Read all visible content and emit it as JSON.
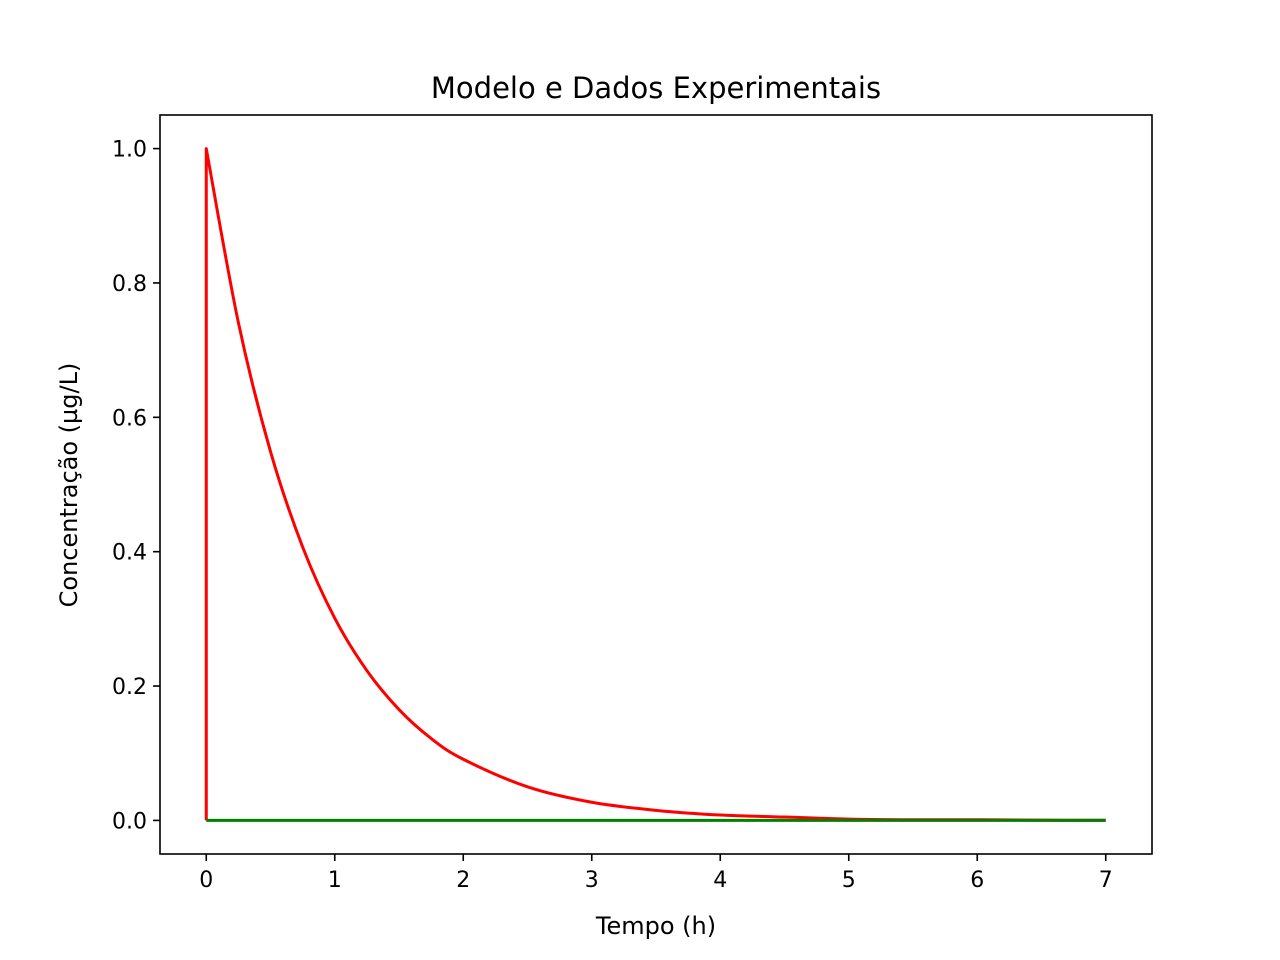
{
  "chart_data": {
    "type": "line",
    "title": "Modelo e Dados Experimentais",
    "xlabel": "Tempo (h)",
    "ylabel": "Concentração (µg/L)",
    "xlim": [
      -0.36,
      7.36
    ],
    "ylim": [
      -0.05,
      1.05
    ],
    "xticks": [
      0,
      1,
      2,
      3,
      4,
      5,
      6,
      7
    ],
    "xtick_labels": [
      "0",
      "1",
      "2",
      "3",
      "4",
      "5",
      "6",
      "7"
    ],
    "yticks": [
      0.0,
      0.2,
      0.4,
      0.6,
      0.8,
      1.0
    ],
    "ytick_labels": [
      "0.0",
      "0.2",
      "0.4",
      "0.6",
      "0.8",
      "1.0"
    ],
    "grid": false,
    "series": [
      {
        "color": "#ff0000",
        "x": [
          0,
          0,
          0.25,
          0.5,
          0.75,
          1.0,
          1.25,
          1.5,
          1.75,
          2.0,
          2.5,
          3.0,
          3.5,
          4.0,
          4.5,
          5.0,
          5.5,
          6.0,
          6.5,
          7.0
        ],
        "y": [
          0.0,
          1.0,
          0.741,
          0.549,
          0.407,
          0.301,
          0.223,
          0.165,
          0.122,
          0.091,
          0.05,
          0.027,
          0.015,
          0.008,
          0.005,
          0.002,
          0.001,
          0.001,
          0.0004,
          0.0002
        ]
      },
      {
        "color": "#008000",
        "x": [
          0,
          7
        ],
        "y": [
          0.0,
          0.0
        ]
      }
    ]
  }
}
